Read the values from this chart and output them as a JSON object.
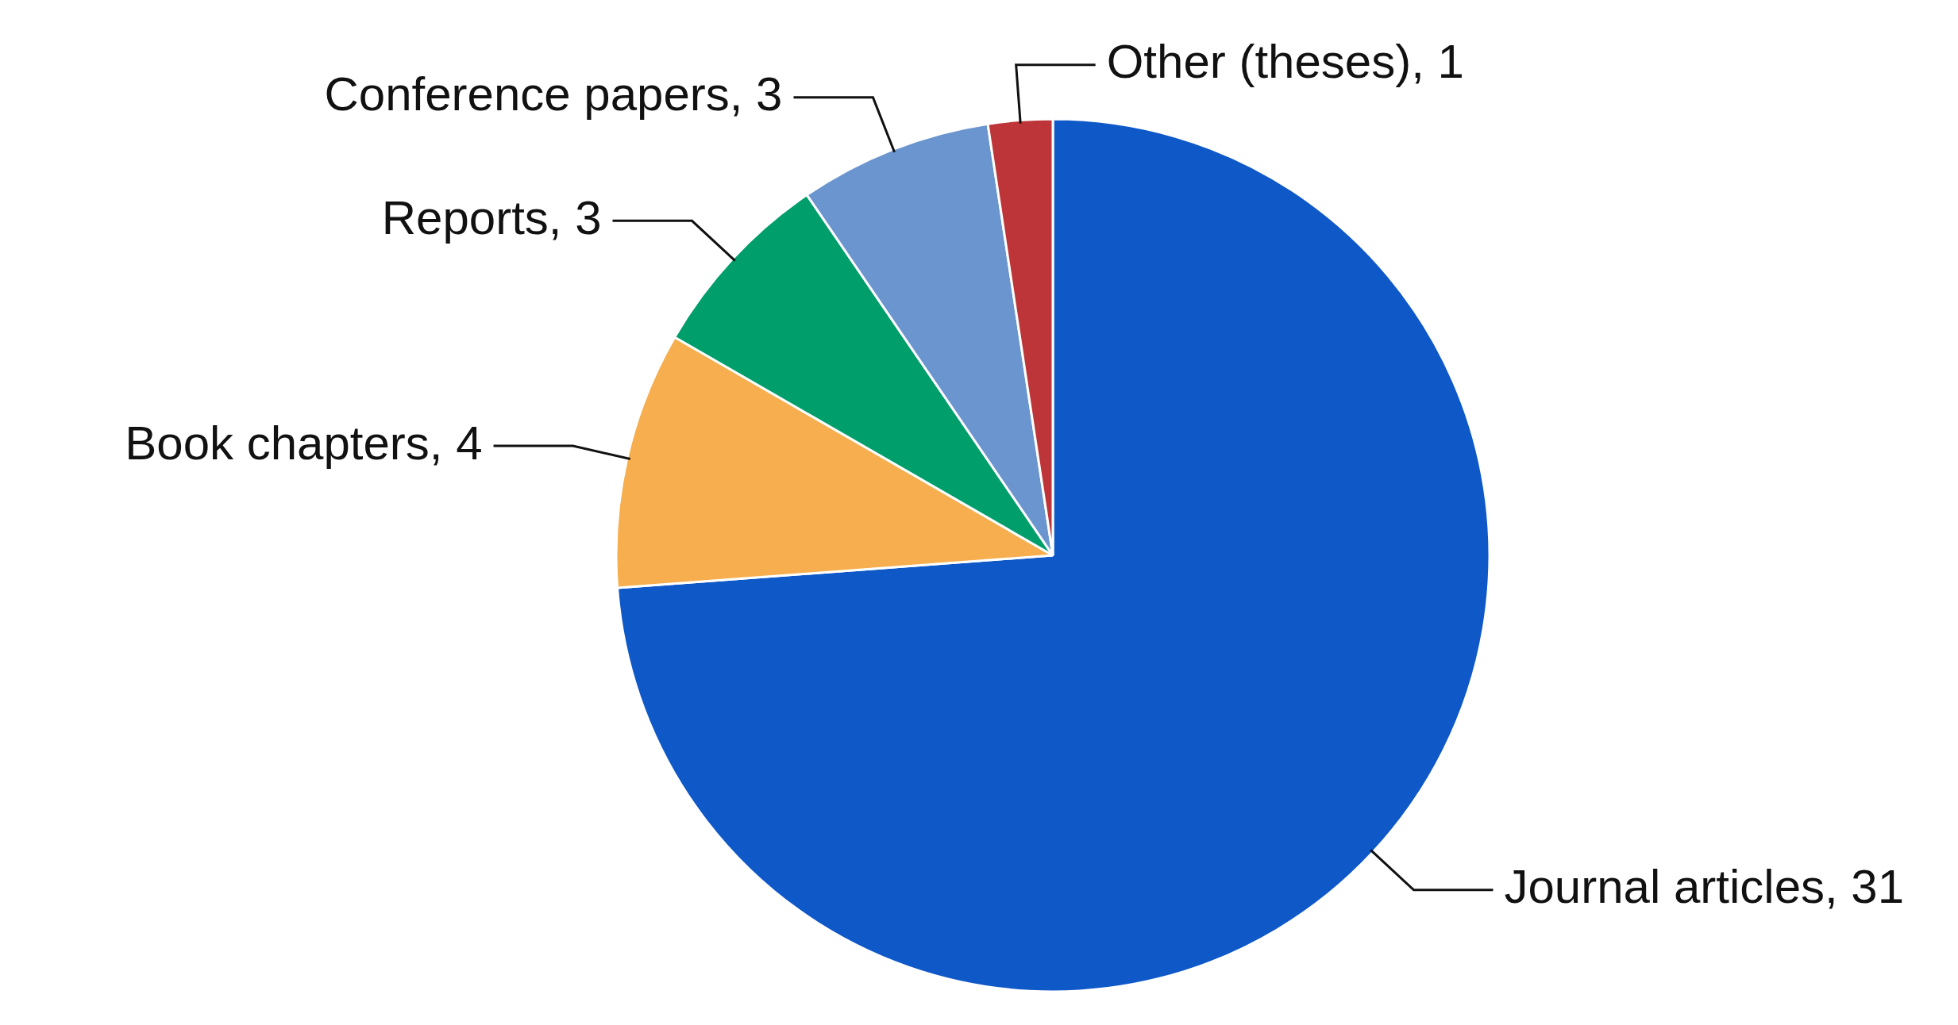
{
  "chart_data": {
    "type": "pie",
    "categories": [
      "Journal articles, 31",
      "Book chapters, 4",
      "Reports, 3",
      "Conference papers, 3",
      "Other (theses), 1"
    ],
    "values": [
      31,
      4,
      3,
      3,
      1
    ],
    "colors": [
      "#0e58c8",
      "#f6ae4e",
      "#009e6b",
      "#6b95ce",
      "#bd3538"
    ],
    "legend": false
  }
}
